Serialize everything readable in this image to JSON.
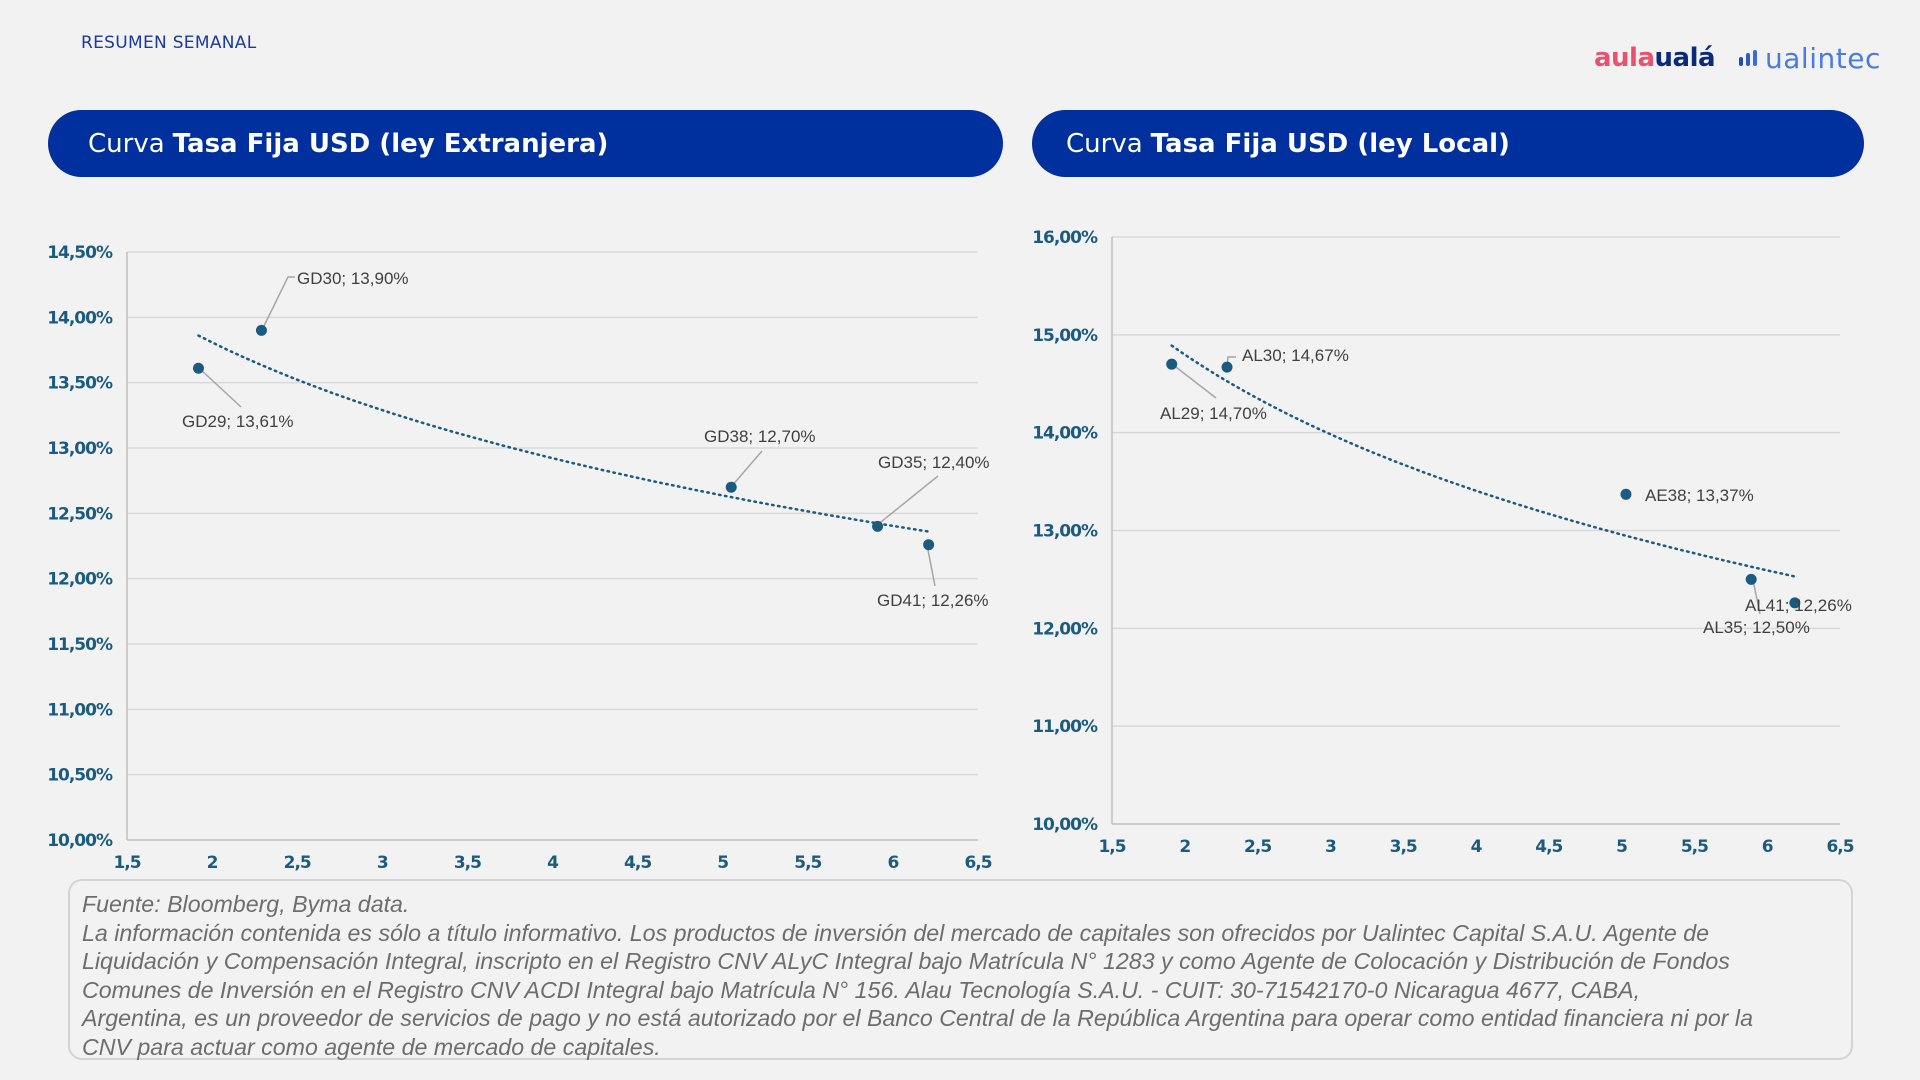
{
  "header": {
    "title": "RESUMEN SEMANAL",
    "logos": {
      "aula": "aula",
      "uala": "ualá",
      "ualintec": "ualintec"
    }
  },
  "colors": {
    "brand_blue": "#00309e",
    "marker": "#1b5b80",
    "trendline": "#1b5b80",
    "axis_text": "#1b5b80",
    "aula_pink": "#e8526e",
    "uala_navy": "#0b2a7a",
    "ualintec_blue": "#4a7be0"
  },
  "banners": [
    {
      "prefix": "Curva",
      "bold": "Tasa Fija USD (ley Extranjera)"
    },
    {
      "prefix": "Curva",
      "bold": "Tasa Fija USD (ley Local)"
    }
  ],
  "chart_data": [
    {
      "type": "scatter",
      "title": "Curva Tasa Fija USD (ley Extranjera)",
      "xlabel": "",
      "ylabel": "",
      "xlim": [
        1.5,
        6.5
      ],
      "ylim": [
        10.0,
        14.5
      ],
      "x_ticks": [
        "1,5",
        "2",
        "2,5",
        "3",
        "3,5",
        "4",
        "4,5",
        "5",
        "5,5",
        "6",
        "6,5"
      ],
      "y_ticks": [
        "10,00%",
        "10,50%",
        "11,00%",
        "11,50%",
        "12,00%",
        "12,50%",
        "13,00%",
        "13,50%",
        "14,00%",
        "14,50%"
      ],
      "grid": "horizontal",
      "points": [
        {
          "name": "GD29",
          "x": 1.92,
          "y": 13.61,
          "label": "GD29; 13,61%"
        },
        {
          "name": "GD30",
          "x": 2.29,
          "y": 13.9,
          "label": "GD30; 13,90%"
        },
        {
          "name": "GD38",
          "x": 5.05,
          "y": 12.7,
          "label": "GD38; 12,70%"
        },
        {
          "name": "GD35",
          "x": 5.91,
          "y": 12.4,
          "label": "GD35; 12,40%"
        },
        {
          "name": "GD41",
          "x": 6.21,
          "y": 12.26,
          "label": "GD41; 12,26%"
        }
      ],
      "trendline": {
        "style": "dotted",
        "kind": "logarithmic",
        "start": {
          "x": 1.92,
          "y": 13.86
        },
        "end": {
          "x": 6.21,
          "y": 12.36
        }
      }
    },
    {
      "type": "scatter",
      "title": "Curva Tasa Fija USD (ley Local)",
      "xlabel": "",
      "ylabel": "",
      "xlim": [
        1.5,
        6.5
      ],
      "ylim": [
        10.0,
        16.0
      ],
      "x_ticks": [
        "1,5",
        "2",
        "2,5",
        "3",
        "3,5",
        "4",
        "4,5",
        "5",
        "5,5",
        "6",
        "6,5"
      ],
      "y_ticks": [
        "10,00%",
        "11,00%",
        "12,00%",
        "13,00%",
        "14,00%",
        "15,00%",
        "16,00%"
      ],
      "grid": "horizontal",
      "points": [
        {
          "name": "AL29",
          "x": 1.91,
          "y": 14.7,
          "label": "AL29; 14,70%"
        },
        {
          "name": "AL30",
          "x": 2.29,
          "y": 14.67,
          "label": "AL30; 14,67%"
        },
        {
          "name": "AE38",
          "x": 5.03,
          "y": 13.37,
          "label": "AE38; 13,37%"
        },
        {
          "name": "AL35",
          "x": 5.89,
          "y": 12.5,
          "label": "AL35; 12,50%"
        },
        {
          "name": "AL41",
          "x": 6.19,
          "y": 12.26,
          "label": "AL41; 12,26%"
        }
      ],
      "trendline": {
        "style": "dotted",
        "kind": "logarithmic",
        "start": {
          "x": 1.91,
          "y": 14.89
        },
        "end": {
          "x": 6.19,
          "y": 12.53
        }
      }
    }
  ],
  "footer": {
    "source": "Fuente: Bloomberg, Byma data.",
    "lines": [
      "La información contenida es sólo a título informativo. Los productos de inversión del mercado de capitales son ofrecidos por Ualintec Capital S.A.U. Agente de",
      "Liquidación y Compensación Integral, inscripto en el Registro CNV ALyC Integral bajo Matrícula N° 1283 y como Agente de Colocación y Distribución de Fondos",
      "Comunes de Inversión en el Registro CNV ACDI Integral bajo Matrícula N° 156. Alau Tecnología S.A.U. - CUIT: 30-71542170-0 Nicaragua 4677, CABA,",
      "Argentina, es un proveedor de servicios de pago y no está autorizado por el Banco Central de la República Argentina para operar como entidad financiera ni por la",
      "CNV para actuar como agente de mercado de capitales."
    ]
  }
}
